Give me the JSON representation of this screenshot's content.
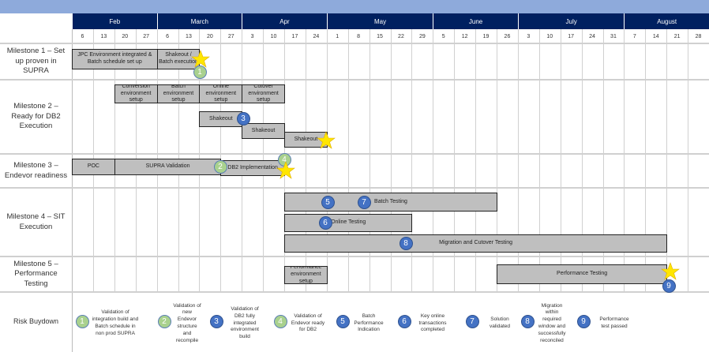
{
  "months": [
    {
      "label": "Feb",
      "weeks": 4
    },
    {
      "label": "March",
      "weeks": 4
    },
    {
      "label": "Apr",
      "weeks": 4
    },
    {
      "label": "May",
      "weeks": 5
    },
    {
      "label": "June",
      "weeks": 4
    },
    {
      "label": "July",
      "weeks": 5
    },
    {
      "label": "August",
      "weeks": 4
    }
  ],
  "weeks": [
    "6",
    "13",
    "20",
    "27",
    "6",
    "13",
    "20",
    "27",
    "3",
    "10",
    "17",
    "24",
    "1",
    "8",
    "15",
    "22",
    "29",
    "5",
    "12",
    "19",
    "26",
    "3",
    "10",
    "17",
    "24",
    "31",
    "7",
    "14",
    "21",
    "28"
  ],
  "rows": [
    {
      "label": "Milestone 1 – Set up proven in SUPRA"
    },
    {
      "label": "Milestone 2 – Ready for DB2 Execution"
    },
    {
      "label": "Milestone 3 – Endevor readiness"
    },
    {
      "label": "Milestone 4 – SIT Execution"
    },
    {
      "label": "Milestone 5 – Performance Testing"
    },
    {
      "label": "Risk Buydown"
    }
  ],
  "bars": [
    {
      "label": "JPC Environment integrated & Batch schedule set up",
      "start": "Feb 6",
      "weeks": 4
    },
    {
      "label": "Shakeout / Batch execution",
      "start": "Mar 6",
      "weeks": 2
    },
    {
      "label": "Conversion environment setup",
      "start": "Feb 20",
      "weeks": 2
    },
    {
      "label": "Batch environment setup",
      "start": "Mar 6",
      "weeks": 2
    },
    {
      "label": "Online environment setup",
      "start": "Mar 20",
      "weeks": 2
    },
    {
      "label": "Cutover environment setup",
      "start": "Apr 3",
      "weeks": 2
    },
    {
      "label": "Shakeout",
      "start": "Mar 20",
      "weeks": 2
    },
    {
      "label": "Shakeout",
      "start": "Apr 3",
      "weeks": 2
    },
    {
      "label": "Shakeout",
      "start": "Apr 17",
      "weeks": 2
    },
    {
      "label": "POC",
      "start": "Feb 6",
      "weeks": 2
    },
    {
      "label": "SUPRA Validation",
      "start": "Feb 20",
      "weeks": 5
    },
    {
      "label": "DB2 Implementation",
      "start": "Mar 27",
      "weeks": 3
    },
    {
      "label": "Batch Testing",
      "start": "Apr 17",
      "weeks": 10
    },
    {
      "label": "Online Testing",
      "start": "Apr 17",
      "weeks": 6
    },
    {
      "label": "Migration and Cutover Testing",
      "start": "Apr 17",
      "weeks": 18
    },
    {
      "label": "Performance environment setup",
      "start": "Apr 17",
      "weeks": 2
    },
    {
      "label": "Performance Testing",
      "start": "Jun 26",
      "weeks": 8
    }
  ],
  "markers": [
    "1",
    "2",
    "3",
    "4",
    "5",
    "6",
    "7",
    "8",
    "9"
  ],
  "risk_items": [
    {
      "num": "1",
      "color": "green",
      "text": "Validation of integration build and Batch schedule in non prod SUPRA"
    },
    {
      "num": "2",
      "color": "green",
      "text": "Validation of new Endevor structure and recompile"
    },
    {
      "num": "3",
      "color": "blue",
      "text": "Validation of DB2 fully integrated environment build"
    },
    {
      "num": "4",
      "color": "green",
      "text": "Validation of Endevor ready for DB2"
    },
    {
      "num": "5",
      "color": "blue",
      "text": "Batch Performance Indication"
    },
    {
      "num": "6",
      "color": "blue",
      "text": "Key online transactions completed"
    },
    {
      "num": "7",
      "color": "blue",
      "text": "Solution validated"
    },
    {
      "num": "8",
      "color": "blue",
      "text": "Migration within required window and successfully reconciled"
    },
    {
      "num": "9",
      "color": "blue",
      "text": "Performance test passed"
    }
  ],
  "colors": {
    "header": "#002060",
    "band": "#8eaadb",
    "bar": "#bfbfbf",
    "green_marker": "#a9d18e",
    "blue_marker": "#4472c4",
    "star": "#ffe600"
  }
}
